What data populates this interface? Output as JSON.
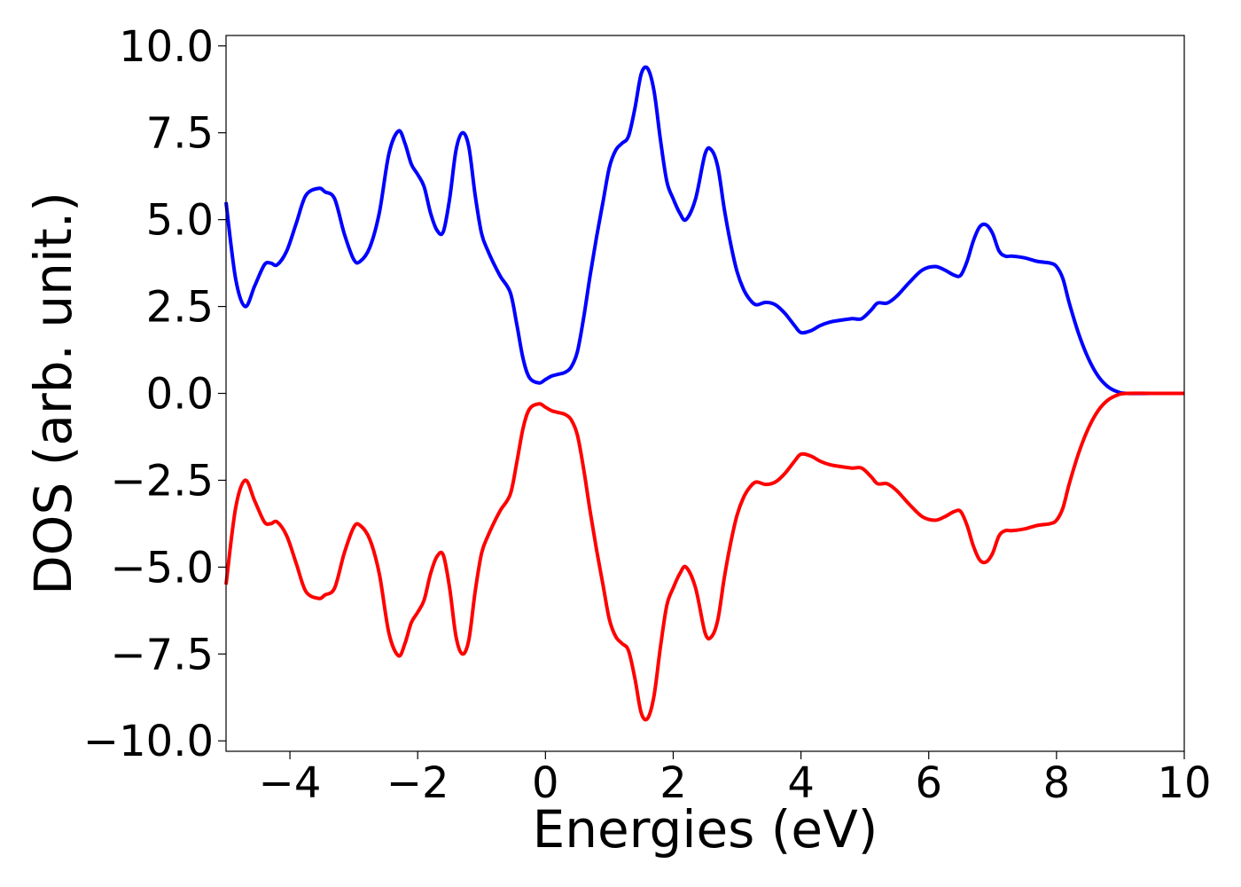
{
  "chart_data": {
    "type": "line",
    "title": "",
    "xlabel": "Energies (eV)",
    "ylabel": "DOS (arb. unit.)",
    "xlim": [
      -5,
      10
    ],
    "ylim": [
      -10.3,
      10.3
    ],
    "grid": false,
    "x_ticks": [
      {
        "value": -4,
        "label": "−4"
      },
      {
        "value": -2,
        "label": "−2"
      },
      {
        "value": 0,
        "label": "0"
      },
      {
        "value": 2,
        "label": "2"
      },
      {
        "value": 4,
        "label": "4"
      },
      {
        "value": 6,
        "label": "6"
      },
      {
        "value": 8,
        "label": "8"
      },
      {
        "value": 10,
        "label": "10"
      }
    ],
    "y_ticks": [
      {
        "value": 10,
        "label": "10.0"
      },
      {
        "value": 7.5,
        "label": "7.5"
      },
      {
        "value": 5,
        "label": "5.0"
      },
      {
        "value": 2.5,
        "label": "2.5"
      },
      {
        "value": 0,
        "label": "0.0"
      },
      {
        "value": -2.5,
        "label": "−2.5"
      },
      {
        "value": -5,
        "label": "−5.0"
      },
      {
        "value": -7.5,
        "label": "−7.5"
      },
      {
        "value": -10,
        "label": "−10.0"
      }
    ],
    "series": [
      {
        "color": "#0000ff",
        "x": [
          -5.0,
          -4.85,
          -4.7,
          -4.55,
          -4.4,
          -4.3,
          -4.2,
          -4.05,
          -3.9,
          -3.75,
          -3.55,
          -3.45,
          -3.3,
          -3.15,
          -3.0,
          -2.9,
          -2.75,
          -2.6,
          -2.45,
          -2.3,
          -2.2,
          -2.1,
          -2.0,
          -1.9,
          -1.8,
          -1.7,
          -1.6,
          -1.5,
          -1.4,
          -1.3,
          -1.2,
          -1.1,
          -1.0,
          -0.9,
          -0.8,
          -0.7,
          -0.55,
          -0.45,
          -0.35,
          -0.25,
          -0.1,
          0.0,
          0.1,
          0.2,
          0.3,
          0.4,
          0.5,
          0.6,
          0.7,
          0.8,
          0.9,
          1.0,
          1.1,
          1.2,
          1.3,
          1.4,
          1.5,
          1.6,
          1.7,
          1.8,
          1.9,
          2.0,
          2.1,
          2.2,
          2.35,
          2.5,
          2.6,
          2.7,
          2.8,
          2.9,
          3.0,
          3.1,
          3.2,
          3.3,
          3.45,
          3.6,
          3.75,
          3.9,
          4.0,
          4.15,
          4.3,
          4.45,
          4.6,
          4.8,
          4.95,
          5.1,
          5.2,
          5.35,
          5.5,
          5.7,
          5.9,
          6.1,
          6.25,
          6.4,
          6.5,
          6.6,
          6.7,
          6.8,
          6.9,
          7.0,
          7.1,
          7.2,
          7.3,
          7.5,
          7.7,
          7.9,
          8.0,
          8.1,
          8.2,
          8.35,
          8.5,
          8.65,
          8.8,
          8.95,
          9.1,
          9.5,
          10.0
        ],
        "y": [
          5.5,
          3.3,
          2.5,
          3.1,
          3.7,
          3.75,
          3.7,
          4.1,
          4.9,
          5.7,
          5.9,
          5.8,
          5.6,
          4.6,
          3.85,
          3.8,
          4.2,
          5.2,
          6.9,
          7.55,
          7.2,
          6.6,
          6.3,
          5.95,
          5.2,
          4.7,
          4.65,
          5.6,
          7.0,
          7.5,
          7.1,
          5.7,
          4.6,
          4.1,
          3.7,
          3.35,
          2.9,
          2.0,
          1.0,
          0.45,
          0.3,
          0.4,
          0.5,
          0.55,
          0.6,
          0.75,
          1.2,
          2.2,
          3.4,
          4.5,
          5.5,
          6.5,
          7.0,
          7.2,
          7.4,
          8.2,
          9.2,
          9.35,
          8.7,
          7.3,
          6.1,
          5.6,
          5.2,
          5.0,
          5.6,
          6.9,
          7.0,
          6.5,
          5.3,
          4.3,
          3.5,
          3.0,
          2.7,
          2.55,
          2.62,
          2.55,
          2.3,
          1.95,
          1.75,
          1.8,
          1.95,
          2.05,
          2.1,
          2.15,
          2.15,
          2.4,
          2.6,
          2.6,
          2.8,
          3.2,
          3.55,
          3.65,
          3.55,
          3.4,
          3.4,
          3.8,
          4.4,
          4.8,
          4.85,
          4.6,
          4.1,
          3.95,
          3.95,
          3.9,
          3.8,
          3.75,
          3.65,
          3.3,
          2.6,
          1.7,
          1.0,
          0.5,
          0.2,
          0.05,
          0.0,
          0.0,
          0.0
        ]
      },
      {
        "color": "#ff0000",
        "x": [
          -5.0,
          -4.85,
          -4.7,
          -4.55,
          -4.4,
          -4.3,
          -4.2,
          -4.05,
          -3.9,
          -3.75,
          -3.55,
          -3.45,
          -3.3,
          -3.15,
          -3.0,
          -2.9,
          -2.75,
          -2.6,
          -2.45,
          -2.3,
          -2.2,
          -2.1,
          -2.0,
          -1.9,
          -1.8,
          -1.7,
          -1.6,
          -1.5,
          -1.4,
          -1.3,
          -1.2,
          -1.1,
          -1.0,
          -0.9,
          -0.8,
          -0.7,
          -0.55,
          -0.45,
          -0.35,
          -0.25,
          -0.1,
          0.0,
          0.1,
          0.2,
          0.3,
          0.4,
          0.5,
          0.6,
          0.7,
          0.8,
          0.9,
          1.0,
          1.1,
          1.2,
          1.3,
          1.4,
          1.5,
          1.6,
          1.7,
          1.8,
          1.9,
          2.0,
          2.1,
          2.2,
          2.35,
          2.5,
          2.6,
          2.7,
          2.8,
          2.9,
          3.0,
          3.1,
          3.2,
          3.3,
          3.45,
          3.6,
          3.75,
          3.9,
          4.0,
          4.15,
          4.3,
          4.45,
          4.6,
          4.8,
          4.95,
          5.1,
          5.2,
          5.35,
          5.5,
          5.7,
          5.9,
          6.1,
          6.25,
          6.4,
          6.5,
          6.6,
          6.7,
          6.8,
          6.9,
          7.0,
          7.1,
          7.2,
          7.3,
          7.5,
          7.7,
          7.9,
          8.0,
          8.1,
          8.2,
          8.35,
          8.5,
          8.65,
          8.8,
          8.95,
          9.1,
          9.5,
          10.0
        ],
        "y": [
          -5.5,
          -3.3,
          -2.5,
          -3.1,
          -3.7,
          -3.75,
          -3.7,
          -4.1,
          -4.9,
          -5.7,
          -5.9,
          -5.8,
          -5.6,
          -4.6,
          -3.85,
          -3.8,
          -4.2,
          -5.2,
          -6.9,
          -7.55,
          -7.2,
          -6.6,
          -6.3,
          -5.95,
          -5.2,
          -4.7,
          -4.65,
          -5.6,
          -7.0,
          -7.5,
          -7.1,
          -5.7,
          -4.6,
          -4.1,
          -3.7,
          -3.35,
          -2.9,
          -2.0,
          -1.0,
          -0.45,
          -0.3,
          -0.4,
          -0.5,
          -0.55,
          -0.6,
          -0.75,
          -1.2,
          -2.2,
          -3.4,
          -4.5,
          -5.5,
          -6.5,
          -7.0,
          -7.2,
          -7.4,
          -8.2,
          -9.2,
          -9.35,
          -8.7,
          -7.3,
          -6.1,
          -5.6,
          -5.2,
          -5.0,
          -5.6,
          -6.9,
          -7.0,
          -6.5,
          -5.3,
          -4.3,
          -3.5,
          -3.0,
          -2.7,
          -2.55,
          -2.62,
          -2.55,
          -2.3,
          -1.95,
          -1.75,
          -1.8,
          -1.95,
          -2.05,
          -2.1,
          -2.15,
          -2.15,
          -2.4,
          -2.6,
          -2.6,
          -2.8,
          -3.2,
          -3.55,
          -3.65,
          -3.55,
          -3.4,
          -3.4,
          -3.8,
          -4.4,
          -4.8,
          -4.85,
          -4.6,
          -4.1,
          -3.95,
          -3.95,
          -3.9,
          -3.8,
          -3.75,
          -3.65,
          -3.3,
          -2.6,
          -1.7,
          -1.0,
          -0.5,
          -0.2,
          -0.05,
          0.0,
          0.0,
          0.0
        ]
      }
    ]
  }
}
